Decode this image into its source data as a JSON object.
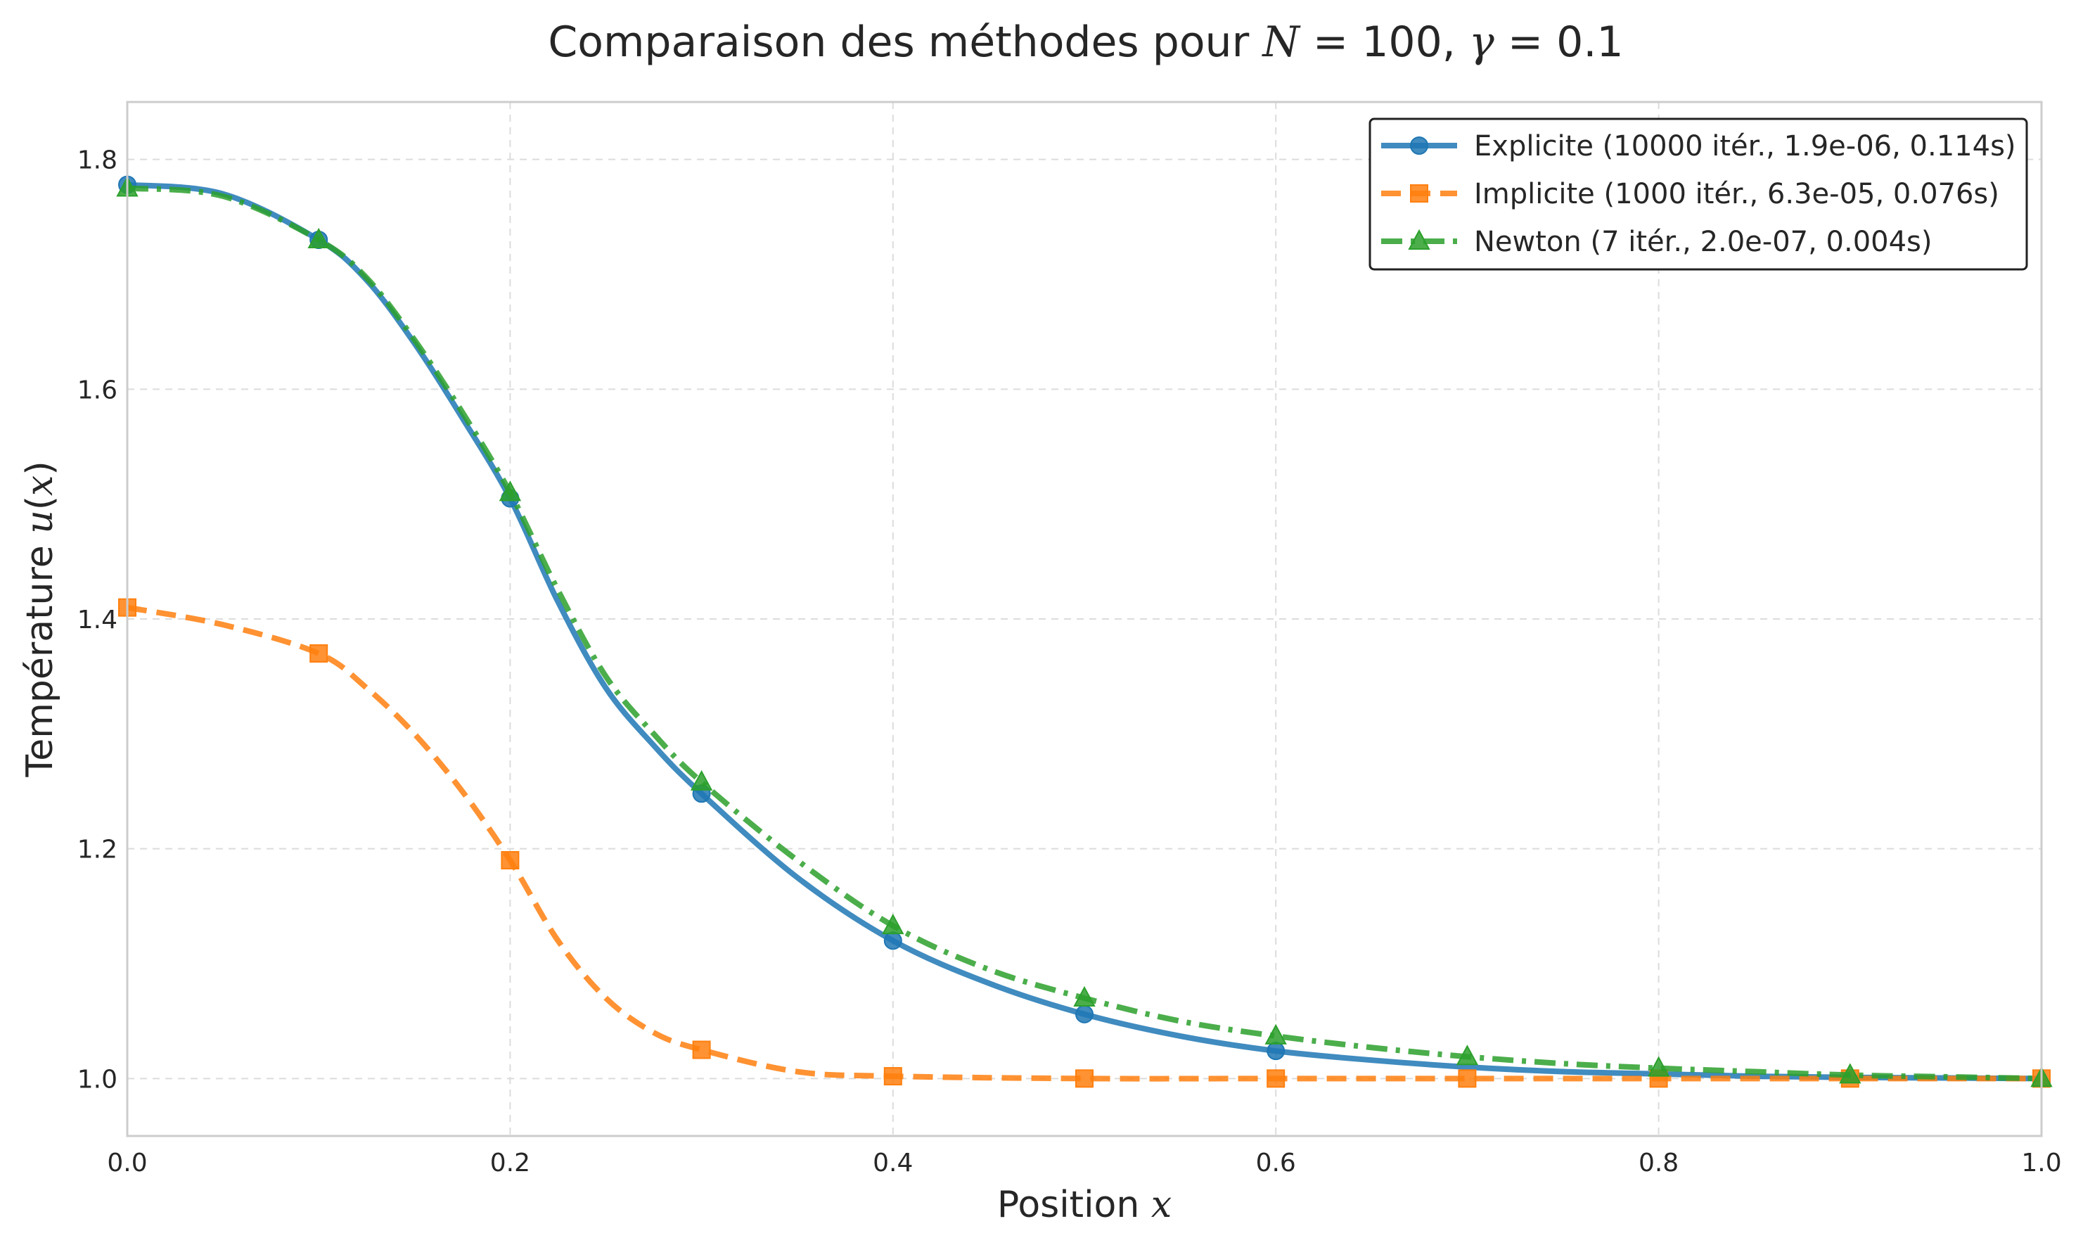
{
  "chart_data": {
    "type": "line",
    "title": {
      "prefix": "Comparaison des méthodes pour ",
      "n_symbol": "N",
      "n_equals": " = 100, ",
      "gamma_symbol": "γ",
      "gamma_equals": " = 0.1"
    },
    "xlabel": {
      "text": "Position ",
      "symbol": "x"
    },
    "ylabel": {
      "text": "Température ",
      "symbol": "u",
      "arg_open": "(",
      "arg": "x",
      "arg_close": ")"
    },
    "xlim": [
      0.0,
      1.0
    ],
    "ylim": [
      0.95,
      1.85
    ],
    "xticks": [
      0.0,
      0.2,
      0.4,
      0.6,
      0.8,
      1.0
    ],
    "xtick_labels": [
      "0.0",
      "0.2",
      "0.4",
      "0.6",
      "0.8",
      "1.0"
    ],
    "yticks": [
      1.0,
      1.2,
      1.4,
      1.6,
      1.8
    ],
    "ytick_labels": [
      "1.0",
      "1.2",
      "1.4",
      "1.6",
      "1.8"
    ],
    "grid": true,
    "legend_position": "top-right",
    "series": [
      {
        "name": "Explicite (10000 itér., 1.9e-06, 0.114s)",
        "color": "#1f77b4",
        "linestyle": "solid",
        "marker": "circle",
        "x": [
          0.0,
          0.05,
          0.1,
          0.125,
          0.15,
          0.175,
          0.2,
          0.225,
          0.25,
          0.275,
          0.3,
          0.35,
          0.4,
          0.45,
          0.5,
          0.55,
          0.6,
          0.65,
          0.7,
          0.75,
          0.8,
          0.85,
          0.9,
          0.95,
          1.0
        ],
        "y": [
          1.778,
          1.77,
          1.73,
          1.695,
          1.64,
          1.575,
          1.505,
          1.415,
          1.34,
          1.29,
          1.248,
          1.175,
          1.12,
          1.083,
          1.056,
          1.037,
          1.024,
          1.016,
          1.01,
          1.006,
          1.004,
          1.002,
          1.001,
          1.0005,
          1.0
        ],
        "marker_x": [
          0.0,
          0.1,
          0.2,
          0.3,
          0.4,
          0.5,
          0.6
        ],
        "marker_y": [
          1.778,
          1.73,
          1.505,
          1.248,
          1.12,
          1.056,
          1.024
        ]
      },
      {
        "name": "Implicite (1000 itér., 6.3e-05, 0.076s)",
        "color": "#ff7f0e",
        "linestyle": "dashed",
        "marker": "square",
        "x": [
          0.0,
          0.05,
          0.1,
          0.125,
          0.15,
          0.175,
          0.2,
          0.225,
          0.25,
          0.275,
          0.3,
          0.35,
          0.4,
          0.5,
          0.6,
          0.7,
          0.8,
          0.9,
          1.0
        ],
        "y": [
          1.41,
          1.395,
          1.37,
          1.34,
          1.3,
          1.25,
          1.19,
          1.12,
          1.07,
          1.04,
          1.025,
          1.006,
          1.002,
          1.0,
          1.0,
          1.0,
          1.0,
          1.0,
          1.0
        ],
        "marker_x": [
          0.0,
          0.1,
          0.2,
          0.3,
          0.4,
          0.5,
          0.6,
          0.7,
          0.8,
          0.9,
          1.0
        ],
        "marker_y": [
          1.41,
          1.37,
          1.19,
          1.025,
          1.002,
          1.0,
          1.0,
          1.0,
          1.0,
          1.0,
          1.0
        ]
      },
      {
        "name": "Newton (7 itér., 2.0e-07, 0.004s)",
        "color": "#2ca02c",
        "linestyle": "dashdot",
        "marker": "triangle",
        "x": [
          0.0,
          0.05,
          0.1,
          0.125,
          0.15,
          0.175,
          0.2,
          0.225,
          0.25,
          0.275,
          0.3,
          0.35,
          0.4,
          0.45,
          0.5,
          0.55,
          0.6,
          0.65,
          0.7,
          0.75,
          0.8,
          0.85,
          0.9,
          0.95,
          1.0
        ],
        "y": [
          1.775,
          1.768,
          1.73,
          1.697,
          1.643,
          1.58,
          1.51,
          1.425,
          1.35,
          1.3,
          1.258,
          1.19,
          1.133,
          1.095,
          1.07,
          1.05,
          1.037,
          1.027,
          1.019,
          1.013,
          1.009,
          1.006,
          1.003,
          1.0015,
          1.0
        ],
        "marker_x": [
          0.0,
          0.1,
          0.2,
          0.3,
          0.4,
          0.5,
          0.6,
          0.7,
          0.8,
          0.9,
          1.0
        ],
        "marker_y": [
          1.775,
          1.73,
          1.51,
          1.258,
          1.133,
          1.07,
          1.037,
          1.019,
          1.009,
          1.003,
          1.0
        ]
      }
    ]
  }
}
